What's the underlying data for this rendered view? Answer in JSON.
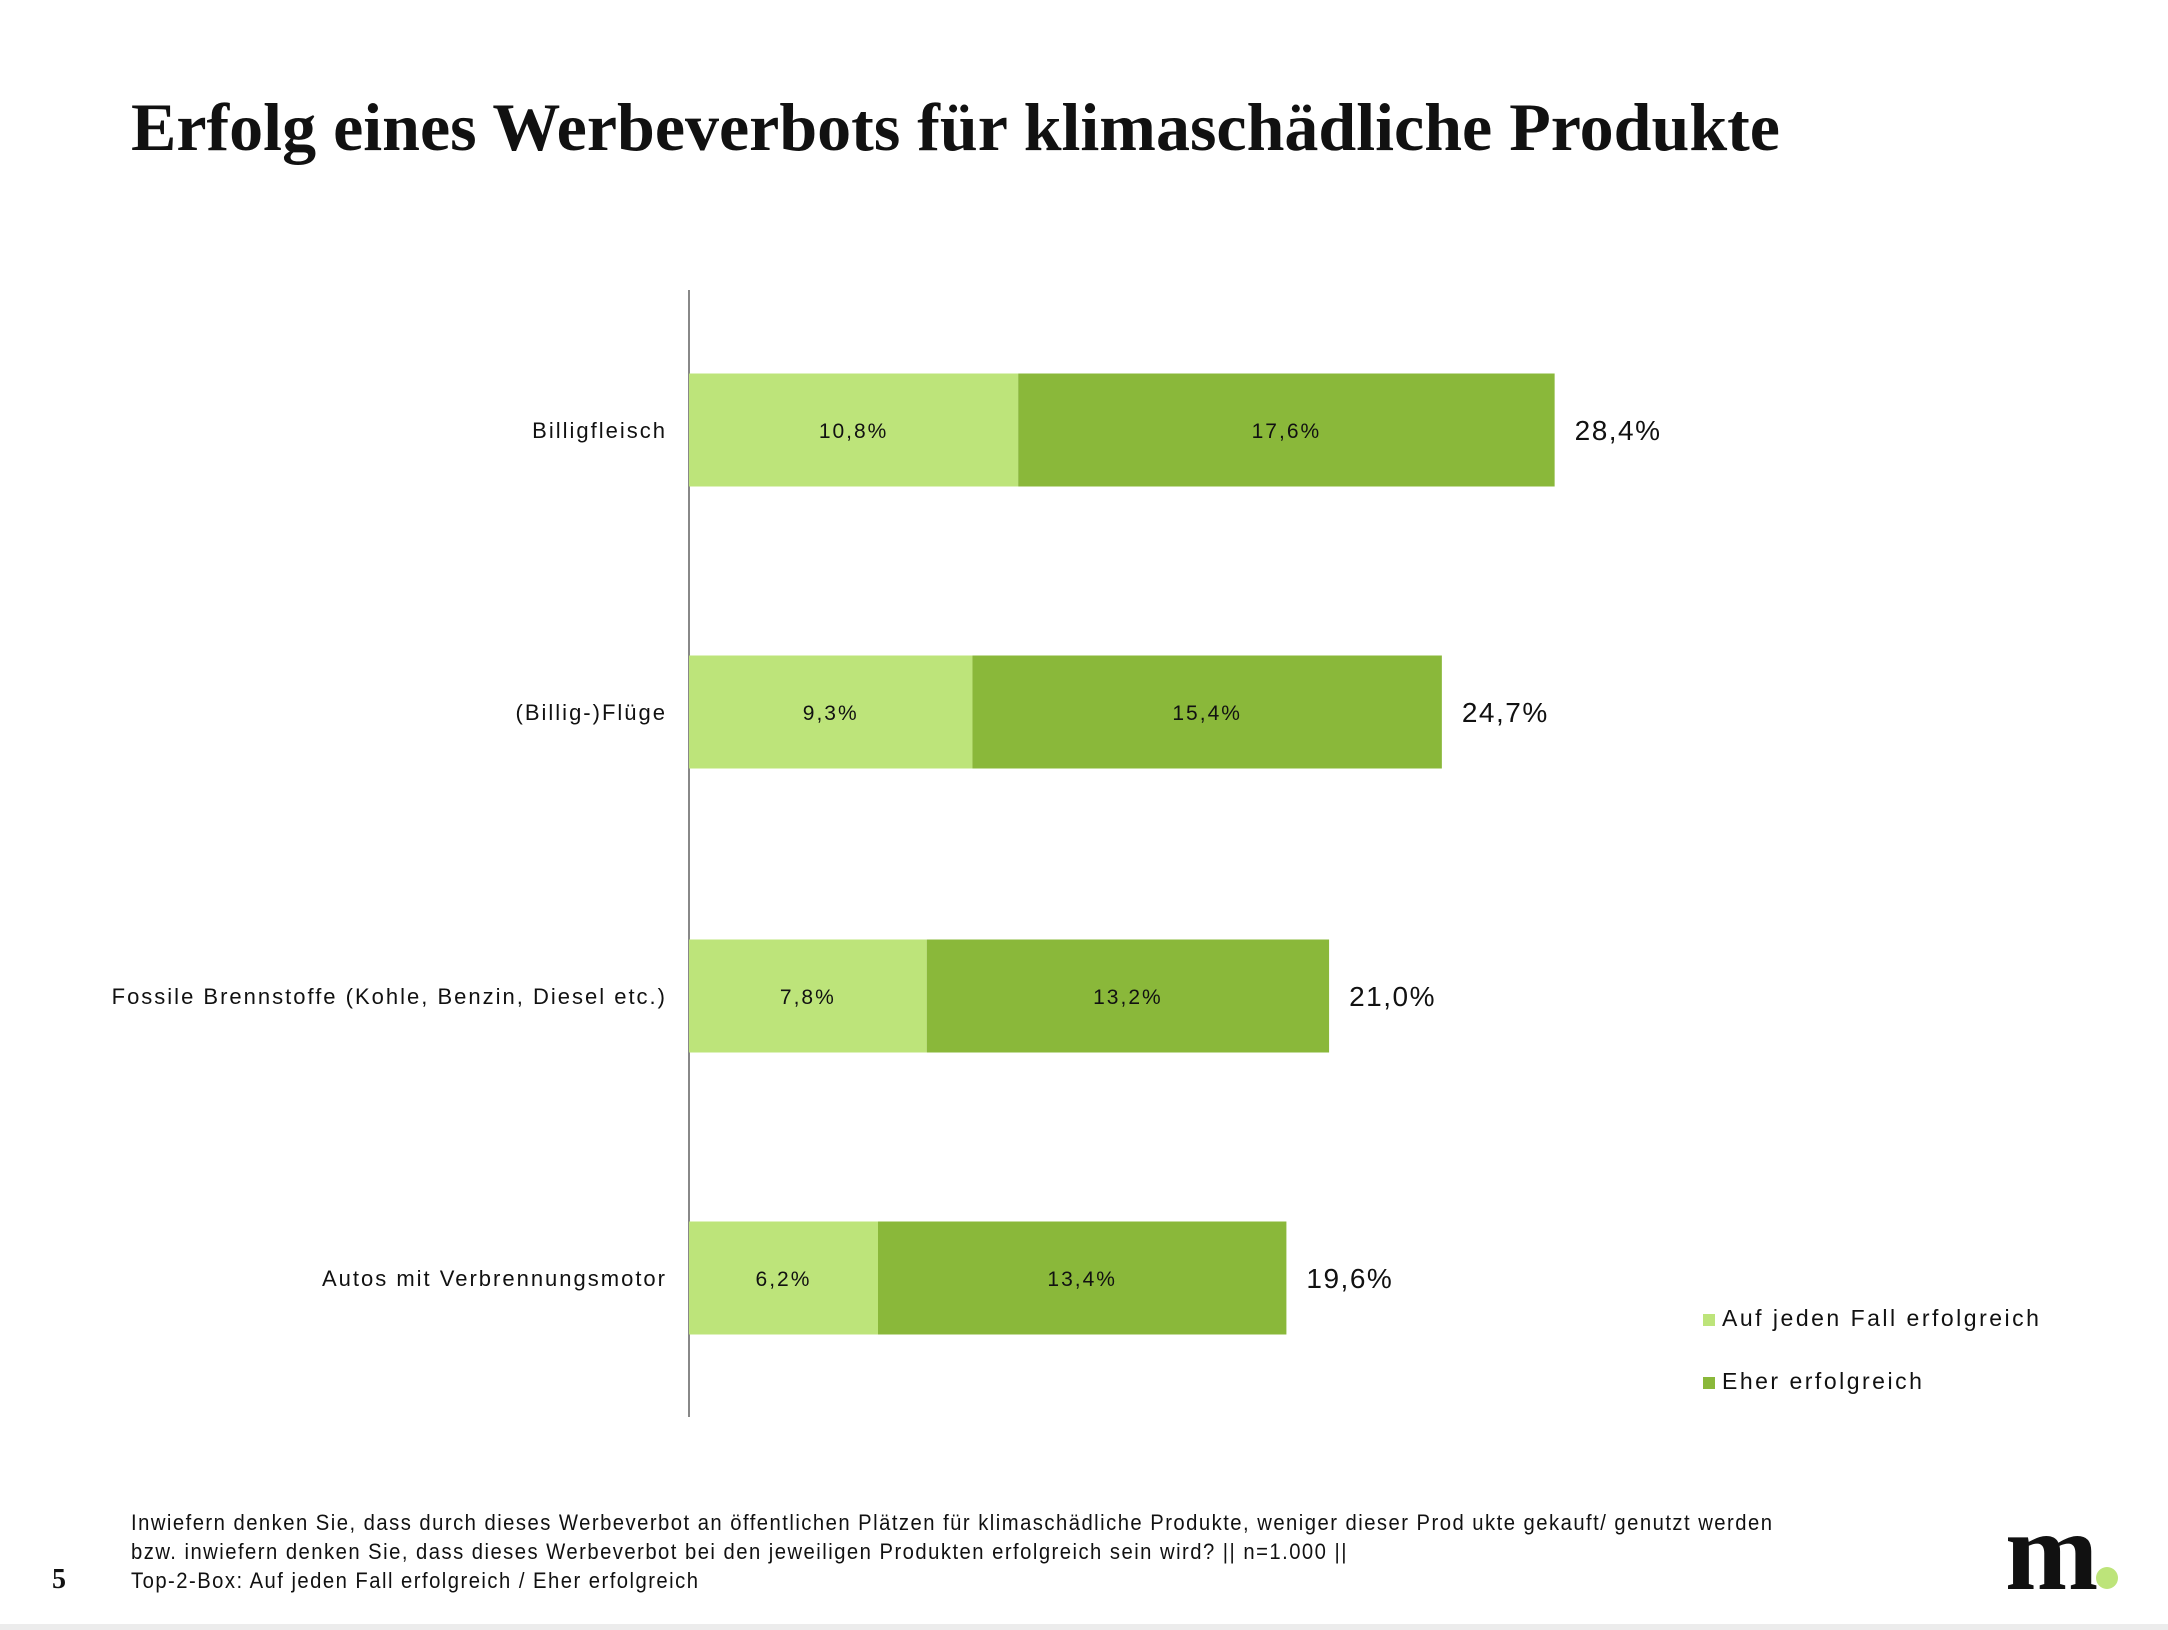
{
  "title": "Erfolg eines Werbeverbots für klimaschädliche Produkte",
  "chart_data": {
    "type": "bar",
    "orientation": "horizontal",
    "stacked": true,
    "categories": [
      "Billigfleisch",
      "(Billig-)Flüge",
      "Fossile Brennstoffe (Kohle, Benzin, Diesel etc.)",
      "Autos mit Verbrennungsmotor"
    ],
    "series": [
      {
        "name": "Auf jeden Fall erfolgreich",
        "color": "#BDE47A",
        "values": [
          10.8,
          9.3,
          7.8,
          6.2
        ],
        "labels": [
          "10,8%",
          "9,3%",
          "7,8%",
          "6,2%"
        ]
      },
      {
        "name": "Eher erfolgreich",
        "color": "#8AB83A",
        "values": [
          17.6,
          15.4,
          13.2,
          13.4
        ],
        "labels": [
          "17,6%",
          "15,4%",
          "13,2%",
          "13,4%"
        ]
      }
    ],
    "totals": [
      28.4,
      24.7,
      21.0,
      19.6
    ],
    "total_labels": [
      "28,4%",
      "24,7%",
      "21,0%",
      "19,6%"
    ],
    "xlim": [
      0,
      50
    ],
    "grid": false,
    "legend": "bottom-right"
  },
  "footnote": {
    "lines": [
      "Inwiefern denken Sie, dass durch dieses Werbeverbot an öffentlichen Plätzen für klimaschädliche Produkte, weniger dieser Prod ukte gekauft/ genutzt werden",
      "bzw. inwiefern denken Sie, dass dieses Werbeverbot bei den jeweiligen Produkten erfolgreich sein wird? || n=1.000 ||",
      "Top-2-Box: Auf jeden Fall erfolgreich / Eher erfolgreich"
    ]
  },
  "page_number": "5",
  "logo": "m"
}
